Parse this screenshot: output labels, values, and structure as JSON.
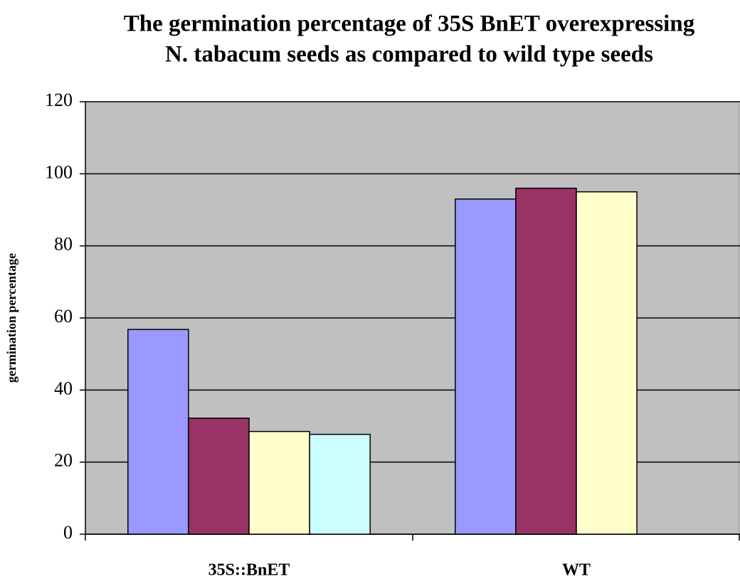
{
  "chart_data": {
    "type": "bar",
    "title": [
      "The germination percentage of 35S BnET overexpressing",
      "N. tabacum seeds as compared to wild type seeds"
    ],
    "y_label": "germination percentage",
    "categories": [
      "35S::BnET",
      "WT"
    ],
    "series": [
      {
        "color": "#9999ff",
        "values": [
          56.8,
          93
        ]
      },
      {
        "color": "#993366",
        "values": [
          32.2,
          96
        ]
      },
      {
        "color": "#ffffcc",
        "values": [
          28.5,
          95
        ]
      },
      {
        "color": "#ccffff",
        "values": [
          27.7,
          null
        ]
      }
    ],
    "ylim": [
      0,
      120
    ],
    "yticks": [
      0,
      20,
      40,
      60,
      80,
      100,
      120
    ],
    "grid": true
  }
}
